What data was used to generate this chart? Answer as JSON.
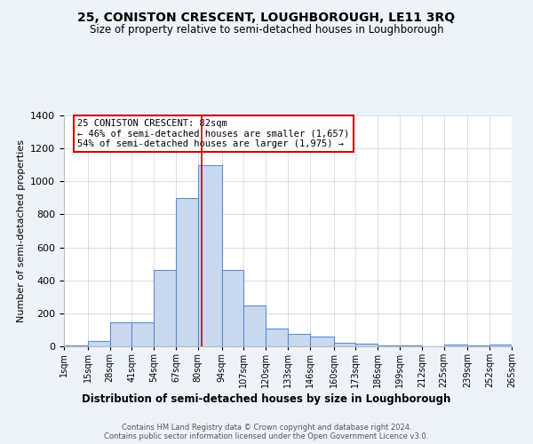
{
  "title": "25, CONISTON CRESCENT, LOUGHBOROUGH, LE11 3RQ",
  "subtitle": "Size of property relative to semi-detached houses in Loughborough",
  "xlabel": "Distribution of semi-detached houses by size in Loughborough",
  "ylabel": "Number of semi-detached properties",
  "bin_edges": [
    1,
    15,
    28,
    41,
    54,
    67,
    80,
    94,
    107,
    120,
    133,
    146,
    160,
    173,
    186,
    199,
    212,
    225,
    239,
    252,
    265
  ],
  "bin_counts": [
    5,
    30,
    145,
    145,
    465,
    900,
    1100,
    465,
    250,
    110,
    75,
    60,
    20,
    15,
    5,
    3,
    2,
    10,
    5,
    10
  ],
  "bar_color": "#c9d9f0",
  "bar_edge_color": "#5b8fcf",
  "property_size": 82,
  "marker_line_color": "#cc0000",
  "annotation_line1": "25 CONISTON CRESCENT: 82sqm",
  "annotation_line2": "← 46% of semi-detached houses are smaller (1,657)",
  "annotation_line3": "54% of semi-detached houses are larger (1,975) →",
  "annotation_box_edge": "#cc0000",
  "ylim": [
    0,
    1400
  ],
  "yticks": [
    0,
    200,
    400,
    600,
    800,
    1000,
    1200,
    1400
  ],
  "tick_labels": [
    "1sqm",
    "15sqm",
    "28sqm",
    "41sqm",
    "54sqm",
    "67sqm",
    "80sqm",
    "94sqm",
    "107sqm",
    "120sqm",
    "133sqm",
    "146sqm",
    "160sqm",
    "173sqm",
    "186sqm",
    "199sqm",
    "212sqm",
    "225sqm",
    "239sqm",
    "252sqm",
    "265sqm"
  ],
  "footer1": "Contains HM Land Registry data © Crown copyright and database right 2024.",
  "footer2": "Contains public sector information licensed under the Open Government Licence v3.0.",
  "bg_color": "#eef2f9",
  "plot_bg_color": "#ffffff"
}
